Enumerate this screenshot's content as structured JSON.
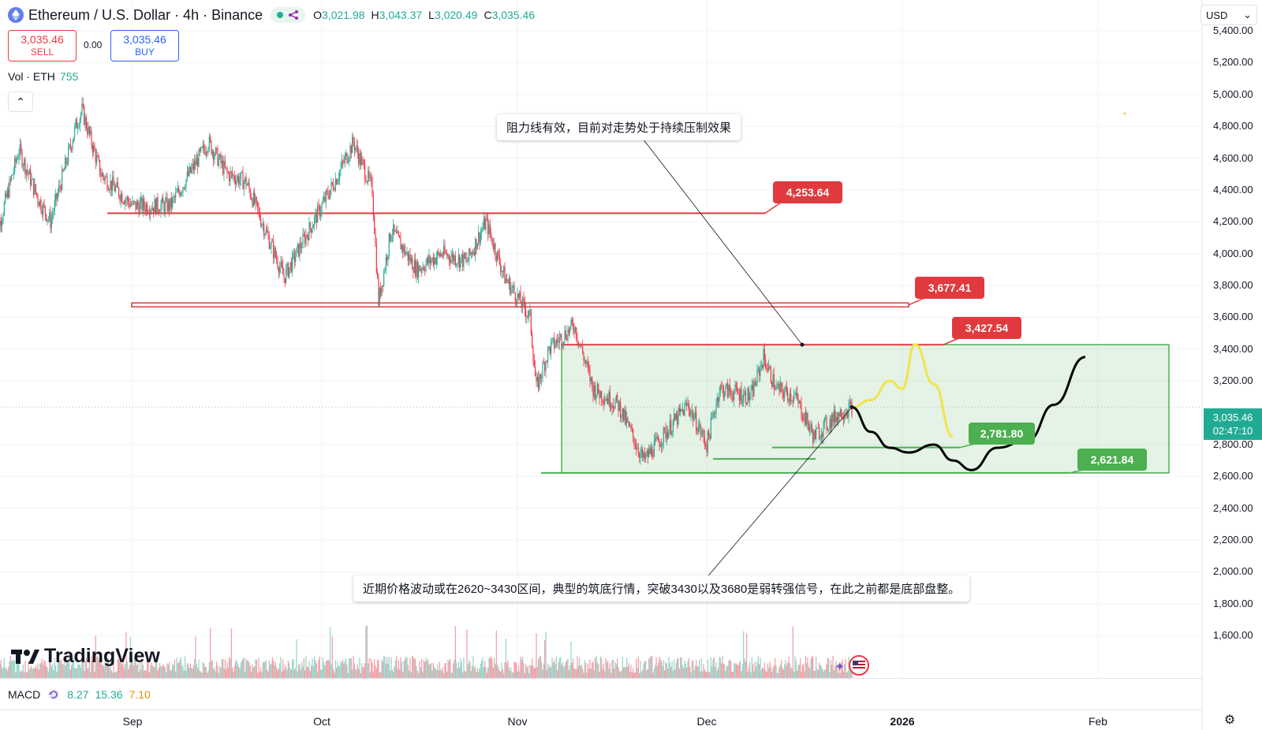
{
  "header": {
    "symbol": "Ethereum / U.S. Dollar · 4h · Binance",
    "ohlc": [
      {
        "key": "O",
        "value": "3,021.98"
      },
      {
        "key": "H",
        "value": "3,043.37"
      },
      {
        "key": "L",
        "value": "3,020.49"
      },
      {
        "key": "C",
        "value": "3,035.46"
      }
    ]
  },
  "trade": {
    "sell_price": "3,035.46",
    "sell_label": "SELL",
    "spread": "0.00",
    "buy_price": "3,035.46",
    "buy_label": "BUY"
  },
  "volume": {
    "label": "Vol · ETH",
    "value": "755"
  },
  "currency": "USD",
  "price_axis": [
    "5,400.00",
    "5,200.00",
    "5,000.00",
    "4,800.00",
    "4,600.00",
    "4,400.00",
    "4,200.00",
    "4,000.00",
    "3,800.00",
    "3,600.00",
    "3,400.00",
    "3,200.00",
    "2,800.00",
    "2,600.00",
    "2,400.00",
    "2,200.00",
    "2,000.00",
    "1,800.00",
    "1,600.00"
  ],
  "last_price": {
    "price": "3,035.46",
    "countdown": "02:47:10"
  },
  "annotations": {
    "top_note": "阻力线有效，目前对走势处于持续压制效果",
    "bottom_note": "近期价格波动或在2620~3430区间，典型的筑底行情，突破3430以及3680是弱转强信号，在此之前都是底部盘整。"
  },
  "tags": {
    "r1": "4,253.64",
    "r2": "3,677.41",
    "r3": "3,427.54",
    "s1": "2,781.80",
    "s2": "2,621.84"
  },
  "brand": "TradingView",
  "macd": {
    "label": "MACD",
    "v1": "8.27",
    "v2": "15.36",
    "v3": "7.10"
  },
  "time_axis": [
    {
      "label": "Sep",
      "bold": false
    },
    {
      "label": "Oct",
      "bold": false
    },
    {
      "label": "Nov",
      "bold": false
    },
    {
      "label": "Dec",
      "bold": false
    },
    {
      "label": "2026",
      "bold": true
    },
    {
      "label": "Feb",
      "bold": false
    }
  ],
  "colors": {
    "up": "#22ab94",
    "down": "#f23645",
    "resistance": "#e03a3e",
    "support": "#4caf50",
    "range_fill": "rgba(76,175,80,0.15)",
    "path_yellow": "#f2e34a",
    "path_black": "#000000"
  },
  "chart_data": {
    "type": "candlestick",
    "symbol": "ETHUSD",
    "timeframe": "4h",
    "ylim": [
      1500,
      5450
    ],
    "resistance_levels": [
      4253.64,
      3677.41,
      3427.54
    ],
    "support_levels": [
      2781.8,
      2621.84
    ],
    "range_box": [
      2621.84,
      3427.54
    ],
    "price_anchors": [
      {
        "d": "2025-08-10",
        "p": 4050
      },
      {
        "d": "2025-08-14",
        "p": 4650
      },
      {
        "d": "2025-08-17",
        "p": 4350
      },
      {
        "d": "2025-08-19",
        "p": 4200
      },
      {
        "d": "2025-08-23",
        "p": 4800
      },
      {
        "d": "2025-08-24",
        "p": 4900
      },
      {
        "d": "2025-08-27",
        "p": 4500
      },
      {
        "d": "2025-09-01",
        "p": 4300
      },
      {
        "d": "2025-09-07",
        "p": 4300
      },
      {
        "d": "2025-09-13",
        "p": 4700
      },
      {
        "d": "2025-09-16",
        "p": 4500
      },
      {
        "d": "2025-09-19",
        "p": 4450
      },
      {
        "d": "2025-09-22",
        "p": 4150
      },
      {
        "d": "2025-09-25",
        "p": 3850
      },
      {
        "d": "2025-09-29",
        "p": 4150
      },
      {
        "d": "2025-10-03",
        "p": 4450
      },
      {
        "d": "2025-10-06",
        "p": 4700
      },
      {
        "d": "2025-10-09",
        "p": 4400
      },
      {
        "d": "2025-10-10",
        "p": 3700
      },
      {
        "d": "2025-10-12",
        "p": 4150
      },
      {
        "d": "2025-10-16",
        "p": 3900
      },
      {
        "d": "2025-10-20",
        "p": 4000
      },
      {
        "d": "2025-10-24",
        "p": 3950
      },
      {
        "d": "2025-10-27",
        "p": 4200
      },
      {
        "d": "2025-10-30",
        "p": 3850
      },
      {
        "d": "2025-11-03",
        "p": 3600
      },
      {
        "d": "2025-11-04",
        "p": 3150
      },
      {
        "d": "2025-11-06",
        "p": 3400
      },
      {
        "d": "2025-11-10",
        "p": 3550
      },
      {
        "d": "2025-11-13",
        "p": 3150
      },
      {
        "d": "2025-11-17",
        "p": 3050
      },
      {
        "d": "2025-11-21",
        "p": 2700
      },
      {
        "d": "2025-11-25",
        "p": 2900
      },
      {
        "d": "2025-11-28",
        "p": 3050
      },
      {
        "d": "2025-12-01",
        "p": 2800
      },
      {
        "d": "2025-12-03",
        "p": 3150
      },
      {
        "d": "2025-12-08",
        "p": 3100
      },
      {
        "d": "2025-12-10",
        "p": 3350
      },
      {
        "d": "2025-12-12",
        "p": 3150
      },
      {
        "d": "2025-12-15",
        "p": 3100
      },
      {
        "d": "2025-12-18",
        "p": 2850
      },
      {
        "d": "2025-12-22",
        "p": 3000
      },
      {
        "d": "2025-12-24",
        "p": 3035.46
      }
    ],
    "projection_yellow": [
      {
        "d": "2025-12-24",
        "p": 3035
      },
      {
        "d": "2025-12-27",
        "p": 3080
      },
      {
        "d": "2025-12-30",
        "p": 3200
      },
      {
        "d": "2026-01-01",
        "p": 3150
      },
      {
        "d": "2026-01-03",
        "p": 3430
      },
      {
        "d": "2026-01-06",
        "p": 3180
      },
      {
        "d": "2026-01-09",
        "p": 2850
      }
    ],
    "projection_black": [
      {
        "d": "2025-12-24",
        "p": 3035
      },
      {
        "d": "2025-12-27",
        "p": 2880
      },
      {
        "d": "2025-12-30",
        "p": 2780
      },
      {
        "d": "2026-01-02",
        "p": 2750
      },
      {
        "d": "2026-01-06",
        "p": 2800
      },
      {
        "d": "2026-01-09",
        "p": 2700
      },
      {
        "d": "2026-01-12",
        "p": 2640
      },
      {
        "d": "2026-01-16",
        "p": 2780
      },
      {
        "d": "2026-01-21",
        "p": 2830
      },
      {
        "d": "2026-01-25",
        "p": 3050
      },
      {
        "d": "2026-01-30",
        "p": 3350
      }
    ]
  }
}
